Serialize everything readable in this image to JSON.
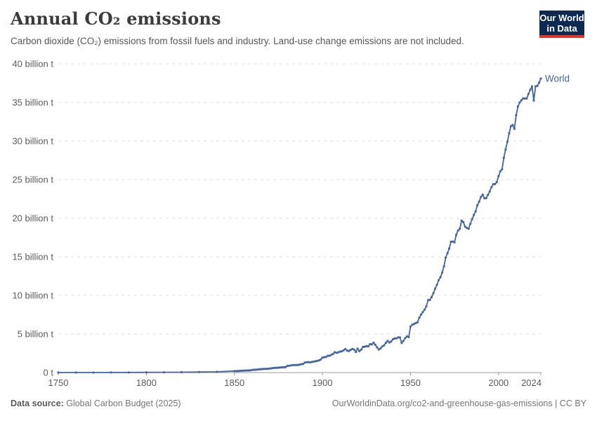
{
  "header": {
    "title": "Annual CO₂ emissions",
    "subtitle": "Carbon dioxide (CO₂) emissions from fossil fuels and industry. Land-use change emissions are not included.",
    "logo": {
      "line1": "Our World",
      "line2": "in Data"
    }
  },
  "footer": {
    "source_label": "Data source:",
    "source_value": "Global Carbon Budget (2025)",
    "link_text": "OurWorldinData.org/co2-and-greenhouse-gas-emissions | CC BY"
  },
  "colors": {
    "line": "#4464a3",
    "series_label": "#4464a3",
    "gridline": "#dedede",
    "axis": "#999999",
    "tick_label": "#5b5b5b",
    "title": "#3b3b3b",
    "subtitle": "#565656",
    "logo_bg": "#0e2a52",
    "logo_red": "#e63323"
  },
  "chart_data": {
    "type": "line",
    "title": "Annual CO₂ emissions",
    "series_name": "World",
    "unit": "billion t",
    "xlabel": "",
    "ylabel": "",
    "x_range": [
      1750,
      2024
    ],
    "y_range": [
      0,
      40
    ],
    "grid": "horizontal-dashed",
    "legend": "end-of-line-label",
    "y_ticks": [
      {
        "v": 0,
        "label": "0 t"
      },
      {
        "v": 5,
        "label": "5 billion t"
      },
      {
        "v": 10,
        "label": "10 billion t"
      },
      {
        "v": 15,
        "label": "15 billion t"
      },
      {
        "v": 20,
        "label": "20 billion t"
      },
      {
        "v": 25,
        "label": "25 billion t"
      },
      {
        "v": 30,
        "label": "30 billion t"
      },
      {
        "v": 35,
        "label": "35 billion t"
      },
      {
        "v": 40,
        "label": "40 billion t"
      }
    ],
    "x_ticks": [
      {
        "v": 1750,
        "label": "1750"
      },
      {
        "v": 1800,
        "label": "1800"
      },
      {
        "v": 1850,
        "label": "1850"
      },
      {
        "v": 1900,
        "label": "1900"
      },
      {
        "v": 1950,
        "label": "1950"
      },
      {
        "v": 2000,
        "label": "2000"
      },
      {
        "v": 2024,
        "label": "2024"
      }
    ],
    "points": [
      [
        1750,
        0.01
      ],
      [
        1760,
        0.01
      ],
      [
        1770,
        0.01
      ],
      [
        1780,
        0.02
      ],
      [
        1790,
        0.02
      ],
      [
        1800,
        0.03
      ],
      [
        1810,
        0.04
      ],
      [
        1820,
        0.05
      ],
      [
        1830,
        0.07
      ],
      [
        1840,
        0.1
      ],
      [
        1850,
        0.2
      ],
      [
        1851,
        0.2
      ],
      [
        1852,
        0.21
      ],
      [
        1853,
        0.22
      ],
      [
        1854,
        0.24
      ],
      [
        1855,
        0.25
      ],
      [
        1856,
        0.26
      ],
      [
        1857,
        0.27
      ],
      [
        1858,
        0.27
      ],
      [
        1859,
        0.28
      ],
      [
        1860,
        0.34
      ],
      [
        1861,
        0.36
      ],
      [
        1862,
        0.37
      ],
      [
        1863,
        0.39
      ],
      [
        1864,
        0.42
      ],
      [
        1865,
        0.44
      ],
      [
        1866,
        0.46
      ],
      [
        1867,
        0.48
      ],
      [
        1868,
        0.48
      ],
      [
        1869,
        0.5
      ],
      [
        1870,
        0.53
      ],
      [
        1871,
        0.55
      ],
      [
        1872,
        0.59
      ],
      [
        1873,
        0.62
      ],
      [
        1874,
        0.62
      ],
      [
        1875,
        0.64
      ],
      [
        1876,
        0.66
      ],
      [
        1877,
        0.68
      ],
      [
        1878,
        0.68
      ],
      [
        1879,
        0.71
      ],
      [
        1880,
        0.85
      ],
      [
        1881,
        0.89
      ],
      [
        1882,
        0.93
      ],
      [
        1883,
        0.97
      ],
      [
        1884,
        0.97
      ],
      [
        1885,
        0.98
      ],
      [
        1886,
        0.99
      ],
      [
        1887,
        1.03
      ],
      [
        1888,
        1.09
      ],
      [
        1889,
        1.11
      ],
      [
        1890,
        1.3
      ],
      [
        1891,
        1.34
      ],
      [
        1892,
        1.35
      ],
      [
        1893,
        1.33
      ],
      [
        1894,
        1.37
      ],
      [
        1895,
        1.43
      ],
      [
        1896,
        1.46
      ],
      [
        1897,
        1.52
      ],
      [
        1898,
        1.58
      ],
      [
        1899,
        1.68
      ],
      [
        1900,
        1.95
      ],
      [
        1901,
        2.0
      ],
      [
        1902,
        2.02
      ],
      [
        1903,
        2.17
      ],
      [
        1904,
        2.18
      ],
      [
        1905,
        2.29
      ],
      [
        1906,
        2.41
      ],
      [
        1907,
        2.64
      ],
      [
        1908,
        2.56
      ],
      [
        1909,
        2.63
      ],
      [
        1910,
        2.72
      ],
      [
        1911,
        2.76
      ],
      [
        1912,
        2.88
      ],
      [
        1913,
        3.05
      ],
      [
        1914,
        2.86
      ],
      [
        1915,
        2.8
      ],
      [
        1916,
        2.94
      ],
      [
        1917,
        3.06
      ],
      [
        1918,
        2.98
      ],
      [
        1919,
        2.66
      ],
      [
        1920,
        3.1
      ],
      [
        1921,
        2.78
      ],
      [
        1922,
        2.98
      ],
      [
        1923,
        3.32
      ],
      [
        1924,
        3.35
      ],
      [
        1925,
        3.42
      ],
      [
        1926,
        3.4
      ],
      [
        1927,
        3.68
      ],
      [
        1928,
        3.65
      ],
      [
        1929,
        3.86
      ],
      [
        1930,
        3.6
      ],
      [
        1931,
        3.27
      ],
      [
        1932,
        2.99
      ],
      [
        1933,
        3.13
      ],
      [
        1934,
        3.39
      ],
      [
        1935,
        3.54
      ],
      [
        1936,
        3.85
      ],
      [
        1937,
        4.1
      ],
      [
        1938,
        3.9
      ],
      [
        1939,
        4.03
      ],
      [
        1940,
        4.32
      ],
      [
        1941,
        4.42
      ],
      [
        1942,
        4.45
      ],
      [
        1943,
        4.55
      ],
      [
        1944,
        4.55
      ],
      [
        1945,
        3.84
      ],
      [
        1946,
        4.11
      ],
      [
        1947,
        4.46
      ],
      [
        1948,
        4.69
      ],
      [
        1949,
        4.6
      ],
      [
        1950,
        5.97
      ],
      [
        1951,
        6.21
      ],
      [
        1952,
        6.3
      ],
      [
        1953,
        6.42
      ],
      [
        1954,
        6.53
      ],
      [
        1955,
        7.12
      ],
      [
        1956,
        7.51
      ],
      [
        1957,
        7.84
      ],
      [
        1958,
        8.15
      ],
      [
        1959,
        8.58
      ],
      [
        1960,
        9.39
      ],
      [
        1961,
        9.41
      ],
      [
        1962,
        9.77
      ],
      [
        1963,
        10.3
      ],
      [
        1964,
        10.88
      ],
      [
        1965,
        11.38
      ],
      [
        1966,
        11.97
      ],
      [
        1967,
        12.35
      ],
      [
        1968,
        12.96
      ],
      [
        1969,
        13.76
      ],
      [
        1970,
        14.9
      ],
      [
        1971,
        15.46
      ],
      [
        1972,
        16.08
      ],
      [
        1973,
        16.95
      ],
      [
        1974,
        16.98
      ],
      [
        1975,
        16.88
      ],
      [
        1976,
        17.85
      ],
      [
        1977,
        18.41
      ],
      [
        1978,
        18.64
      ],
      [
        1979,
        19.69
      ],
      [
        1980,
        19.5
      ],
      [
        1981,
        18.91
      ],
      [
        1982,
        18.74
      ],
      [
        1983,
        18.64
      ],
      [
        1984,
        19.28
      ],
      [
        1985,
        19.86
      ],
      [
        1986,
        20.44
      ],
      [
        1987,
        20.89
      ],
      [
        1988,
        21.68
      ],
      [
        1989,
        22.15
      ],
      [
        1990,
        22.76
      ],
      [
        1991,
        23.05
      ],
      [
        1992,
        22.58
      ],
      [
        1993,
        22.61
      ],
      [
        1994,
        23.04
      ],
      [
        1995,
        23.48
      ],
      [
        1996,
        24.03
      ],
      [
        1997,
        24.41
      ],
      [
        1998,
        24.43
      ],
      [
        1999,
        24.67
      ],
      [
        2000,
        25.45
      ],
      [
        2001,
        26.07
      ],
      [
        2002,
        26.33
      ],
      [
        2003,
        27.83
      ],
      [
        2004,
        28.91
      ],
      [
        2005,
        29.9
      ],
      [
        2006,
        31.0
      ],
      [
        2007,
        31.93
      ],
      [
        2008,
        32.08
      ],
      [
        2009,
        31.58
      ],
      [
        2010,
        33.35
      ],
      [
        2011,
        34.46
      ],
      [
        2012,
        35.0
      ],
      [
        2013,
        35.28
      ],
      [
        2014,
        35.54
      ],
      [
        2015,
        35.5
      ],
      [
        2016,
        35.52
      ],
      [
        2017,
        36.1
      ],
      [
        2018,
        36.65
      ],
      [
        2019,
        37.08
      ],
      [
        2020,
        35.26
      ],
      [
        2021,
        37.08
      ],
      [
        2022,
        37.15
      ],
      [
        2023,
        37.55
      ],
      [
        2024,
        38.1
      ]
    ]
  }
}
